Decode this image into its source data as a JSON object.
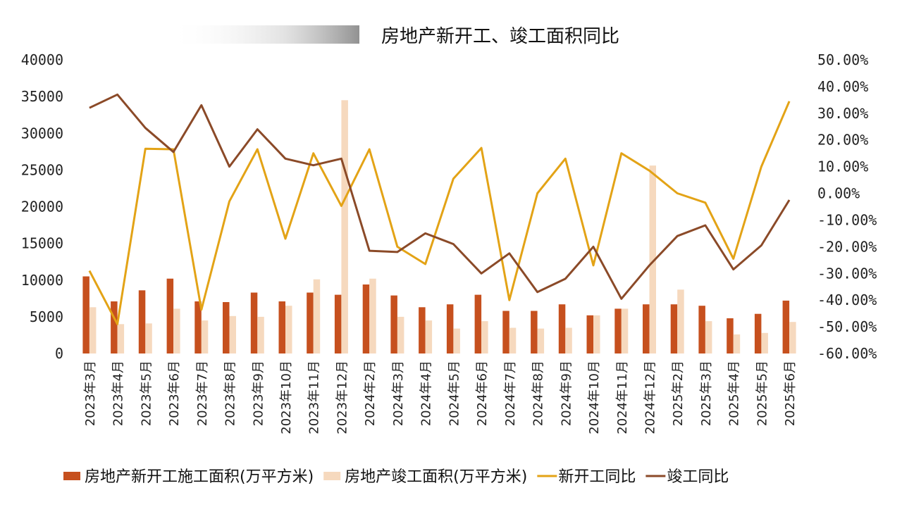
{
  "chart_data": {
    "type": "bar",
    "title": "房地产新开工、竣工面积同比",
    "categories": [
      "2023年3月",
      "2023年4月",
      "2023年5月",
      "2023年6月",
      "2023年7月",
      "2023年8月",
      "2023年9月",
      "2023年10月",
      "2023年11月",
      "2023年12月",
      "2024年2月",
      "2024年3月",
      "2024年4月",
      "2024年5月",
      "2024年6月",
      "2024年7月",
      "2024年8月",
      "2024年9月",
      "2024年10月",
      "2024年11月",
      "2024年12月",
      "2025年2月",
      "2025年3月",
      "2025年4月",
      "2025年5月",
      "2025年6月"
    ],
    "y_left": {
      "ylim": [
        0,
        40000
      ],
      "ticks": [
        "0",
        "5000",
        "10000",
        "15000",
        "20000",
        "25000",
        "30000",
        "35000",
        "40000"
      ]
    },
    "y_right": {
      "ylim": [
        -0.6,
        0.5
      ],
      "ticks": [
        "-60.00%",
        "-50.00%",
        "-40.00%",
        "-30.00%",
        "-20.00%",
        "-10.00%",
        "0.00%",
        "10.00%",
        "20.00%",
        "30.00%",
        "40.00%",
        "50.00%"
      ]
    },
    "series": [
      {
        "name": "房地产新开工施工面积(万平方米)",
        "kind": "bar",
        "axis": "left",
        "color": "#C6501E",
        "values": [
          10500,
          7100,
          8600,
          10200,
          7100,
          7000,
          8300,
          7100,
          8300,
          8000,
          9400,
          7900,
          6300,
          6700,
          8000,
          5800,
          5800,
          6700,
          5200,
          6100,
          6700,
          6700,
          6500,
          4800,
          5400,
          7200
        ]
      },
      {
        "name": "房地产竣工面积(万平方米)",
        "kind": "bar",
        "axis": "left",
        "color": "#F6D9BE",
        "values": [
          6300,
          4000,
          4100,
          6100,
          4500,
          5100,
          5000,
          6500,
          10100,
          34500,
          10200,
          5000,
          4500,
          3400,
          4400,
          3500,
          3400,
          3500,
          5200,
          6100,
          25600,
          8700,
          4400,
          2600,
          2800,
          4300
        ]
      },
      {
        "name": "新开工同比",
        "kind": "line",
        "axis": "right",
        "color": "#E3A316",
        "values": [
          -0.29,
          -0.49,
          0.167,
          0.165,
          -0.436,
          -0.03,
          0.165,
          -0.17,
          0.15,
          -0.047,
          0.165,
          -0.2,
          -0.265,
          0.055,
          0.17,
          -0.4,
          0.0,
          0.13,
          -0.27,
          0.15,
          0.085,
          0.0,
          -0.035,
          -0.245,
          0.1,
          0.345
        ]
      },
      {
        "name": "竣工同比",
        "kind": "line",
        "axis": "right",
        "color": "#8B4A28",
        "values": [
          0.32,
          0.37,
          0.245,
          0.155,
          0.33,
          0.1,
          0.24,
          0.13,
          0.105,
          0.13,
          -0.215,
          -0.22,
          -0.15,
          -0.19,
          -0.3,
          -0.225,
          -0.37,
          -0.32,
          -0.2,
          -0.395,
          -0.27,
          -0.16,
          -0.12,
          -0.285,
          -0.195,
          -0.025
        ]
      }
    ],
    "grid": false,
    "legend_position": "bottom"
  }
}
